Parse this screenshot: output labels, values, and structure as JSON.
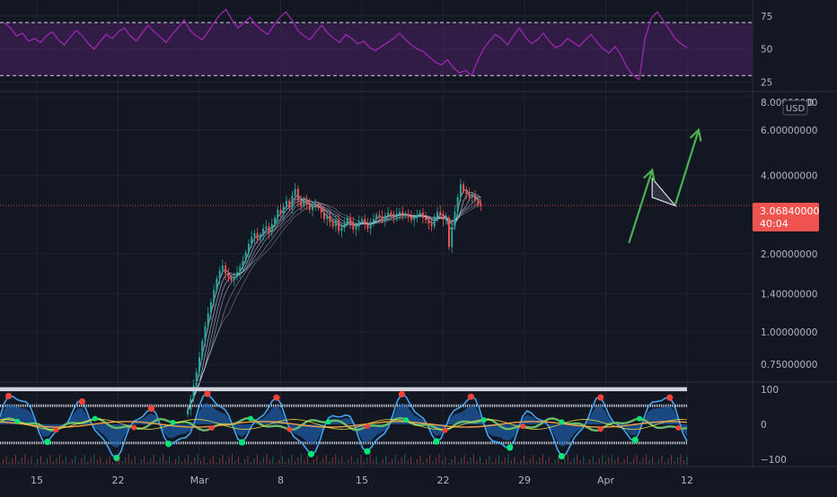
{
  "currency_label": "USD",
  "price_axis_top_label": "8.00000000",
  "price_axis_top_suffix": "0",
  "last_price": {
    "value": "3.06840000",
    "countdown": "40:04",
    "color": "#ef5350"
  },
  "colors": {
    "background": "#131722",
    "axis_text": "#b2b5be",
    "rsi_line": "#9c27b0",
    "rsi_band": "#4a2163",
    "up_candle": "#26a69a",
    "down_candle": "#ef5350",
    "ribbon": "#c6d4ea",
    "arrow_green": "#4caf50",
    "osc_blue": "#42a5f5",
    "osc_fill": "#1e63b5",
    "osc_green": "#66bb6a",
    "osc_orange": "#f0a04b",
    "marker_red": "#f44336",
    "marker_green": "#00e676"
  },
  "chart_data": [
    {
      "type": "line",
      "panel": "rsi",
      "y_ticks": [
        "75",
        "50",
        "25"
      ],
      "y_tick_values": [
        75,
        50,
        25
      ],
      "ylim": [
        20,
        85
      ],
      "bands": [
        30,
        70
      ],
      "values": [
        70,
        66,
        60,
        62,
        56,
        58,
        55,
        60,
        63,
        57,
        53,
        59,
        64,
        60,
        54,
        50,
        56,
        61,
        58,
        63,
        66,
        60,
        56,
        62,
        68,
        63,
        59,
        55,
        61,
        66,
        72,
        64,
        60,
        57,
        63,
        70,
        76,
        80,
        72,
        66,
        70,
        74,
        68,
        64,
        61,
        68,
        74,
        78,
        72,
        64,
        60,
        57,
        63,
        68,
        62,
        58,
        55,
        61,
        58,
        54,
        56,
        51,
        49,
        52,
        55,
        58,
        62,
        57,
        53,
        50,
        48,
        44,
        40,
        38,
        42,
        36,
        32,
        34,
        30,
        41,
        50,
        56,
        61,
        58,
        53,
        60,
        66,
        59,
        54,
        57,
        62,
        56,
        51,
        53,
        58,
        55,
        52,
        57,
        61,
        55,
        50,
        47,
        52,
        45,
        36,
        30,
        27,
        58,
        73,
        78,
        72,
        65,
        58,
        54,
        51
      ]
    },
    {
      "type": "candlestick",
      "panel": "price",
      "currency": "USD",
      "y_scale": "log",
      "y_ticks": [
        "8.00000000",
        "6.00000000",
        "4.00000000",
        "2.00000000",
        "1.40000000",
        "1.00000000",
        "0.75000000"
      ],
      "y_tick_values": [
        8,
        6,
        4,
        2,
        1.4,
        1,
        0.75
      ],
      "ylim": [
        0.65,
        8.3
      ],
      "x_ticks": [
        "15",
        "22",
        "Mar",
        "8",
        "15",
        "22",
        "29",
        "Apr",
        "12"
      ],
      "x_tick_dates": [
        "2021-02-15",
        "2021-02-22",
        "2021-03-01",
        "2021-03-08",
        "2021-03-15",
        "2021-03-22",
        "2021-03-29",
        "2021-04-05",
        "2021-04-12"
      ],
      "last_price": 3.0684,
      "closes": [
        0.5,
        0.55,
        0.62,
        0.7,
        0.8,
        0.92,
        1.05,
        1.18,
        1.3,
        1.45,
        1.6,
        1.72,
        1.8,
        1.68,
        1.62,
        1.58,
        1.63,
        1.7,
        1.78,
        1.88,
        2.02,
        2.18,
        2.32,
        2.4,
        2.28,
        2.36,
        2.5,
        2.55,
        2.42,
        2.6,
        2.75,
        2.95,
        2.85,
        3.05,
        3.2,
        3.0,
        3.35,
        3.55,
        3.2,
        3.05,
        3.25,
        3.1,
        2.95,
        3.05,
        3.1,
        3.0,
        2.88,
        2.72,
        2.8,
        2.65,
        2.55,
        2.7,
        2.45,
        2.52,
        2.6,
        2.75,
        2.62,
        2.48,
        2.55,
        2.68,
        2.72,
        2.6,
        2.5,
        2.65,
        2.72,
        2.82,
        2.78,
        2.7,
        2.8,
        2.88,
        2.82,
        2.75,
        2.85,
        2.9,
        2.8,
        2.85,
        2.78,
        2.7,
        2.76,
        2.82,
        2.88,
        2.75,
        2.7,
        2.62,
        2.55,
        2.78,
        2.9,
        2.85,
        2.7,
        2.75,
        2.12,
        2.55,
        2.9,
        3.3,
        3.7,
        3.5,
        3.4,
        3.3,
        3.35,
        3.2,
        3.1,
        3.07
      ],
      "annotations": {
        "arrows": [
          {
            "from": [
              "2021-04-07",
              2.2
            ],
            "to": [
              "2021-04-09",
              4.2
            ]
          },
          {
            "from": [
              "2021-04-11",
              3.1
            ],
            "to": [
              "2021-04-13",
              6.0
            ]
          }
        ],
        "pennant": {
          "points": [
            [
              "2021-04-09",
              3.9
            ],
            [
              "2021-04-11",
              3.06
            ],
            [
              "2021-04-09",
              3.3
            ]
          ]
        }
      }
    },
    {
      "type": "line",
      "panel": "oscillator",
      "y_ticks": [
        "100",
        "0",
        "−100"
      ],
      "y_tick_values": [
        100,
        0,
        -100
      ],
      "ylim": [
        -115,
        115
      ],
      "bands": [
        100,
        53,
        -53,
        -100
      ]
    }
  ]
}
